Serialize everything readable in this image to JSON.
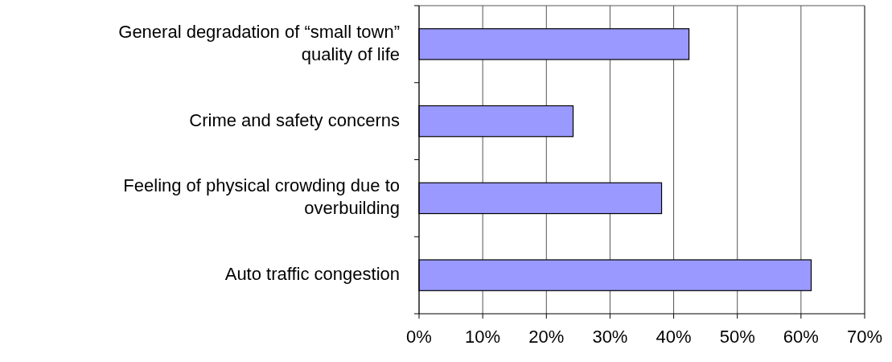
{
  "chart_data": {
    "type": "bar",
    "orientation": "horizontal",
    "categories": [
      "General degradation of “small town” quality of life",
      "Crime and safety concerns",
      "Feeling of physical crowding due to overbuilding",
      "Auto traffic congestion"
    ],
    "values": [
      42.4,
      24.2,
      38.1,
      61.6
    ],
    "color": "#9999ff",
    "xlim": [
      0,
      70
    ],
    "xticks": [
      {
        "value": 0,
        "label": "0%"
      },
      {
        "value": 10,
        "label": "10%"
      },
      {
        "value": 20,
        "label": "20%"
      },
      {
        "value": 30,
        "label": "30%"
      },
      {
        "value": 40,
        "label": "40%"
      },
      {
        "value": 50,
        "label": "50%"
      },
      {
        "value": 60,
        "label": "60%"
      },
      {
        "value": 70,
        "label": "70%"
      }
    ],
    "grid": "x"
  }
}
